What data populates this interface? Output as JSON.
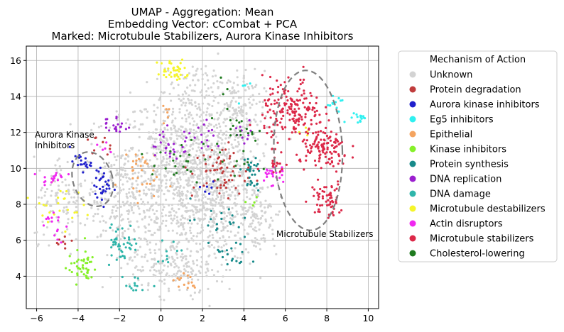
{
  "chart_data": {
    "type": "scatter",
    "title": [
      "UMAP - Aggregation: Mean",
      "Embedding Vector: cCombat + PCA",
      "Marked: Microtubule Stabilizers, Aurora Kinase Inhibitors"
    ],
    "xlabel": "",
    "ylabel": "",
    "xlim": [
      -6.5,
      10.5
    ],
    "ylim": [
      2.2,
      16.8
    ],
    "xticks": [
      -6,
      -4,
      -2,
      0,
      2,
      4,
      6,
      8,
      10
    ],
    "yticks": [
      4,
      6,
      8,
      10,
      12,
      14,
      16
    ],
    "xtick_labels": [
      "−6",
      "−4",
      "−2",
      "0",
      "2",
      "4",
      "6",
      "8",
      "10"
    ],
    "ytick_labels": [
      "4",
      "6",
      "8",
      "10",
      "12",
      "14",
      "16"
    ],
    "grid": true,
    "legend": {
      "title": "Mechanism of Action",
      "placement": "outside-right"
    },
    "series": [
      {
        "name": "Unknown",
        "color": "#d3d3d3",
        "clusters": [
          {
            "cx": 1.2,
            "cy": 9.8,
            "sx": 1.6,
            "sy": 2.3,
            "n": 900
          },
          {
            "cx": 2.8,
            "cy": 8.0,
            "sx": 1.0,
            "sy": 1.8,
            "n": 300
          },
          {
            "cx": -1.6,
            "cy": 8.5,
            "sx": 1.1,
            "sy": 1.6,
            "n": 250
          },
          {
            "cx": 3.6,
            "cy": 13.0,
            "sx": 0.7,
            "sy": 1.2,
            "n": 150
          },
          {
            "cx": 0.5,
            "cy": 4.6,
            "sx": 1.0,
            "sy": 0.8,
            "n": 150
          },
          {
            "cx": -4.6,
            "cy": 8.3,
            "sx": 0.8,
            "sy": 1.2,
            "n": 110
          },
          {
            "cx": 4.6,
            "cy": 7.4,
            "sx": 0.5,
            "sy": 1.0,
            "n": 90
          },
          {
            "cx": 1.8,
            "cy": 14.2,
            "sx": 0.6,
            "sy": 0.8,
            "n": 70
          }
        ]
      },
      {
        "name": "Protein degradation",
        "color": "#c03c3c",
        "clusters": [
          {
            "cx": 2.9,
            "cy": 9.8,
            "sx": 0.7,
            "sy": 0.8,
            "n": 60
          },
          {
            "cx": -3.0,
            "cy": 11.2,
            "sx": 0.3,
            "sy": 0.3,
            "n": 10
          },
          {
            "cx": -4.7,
            "cy": 6.0,
            "sx": 0.3,
            "sy": 0.2,
            "n": 8
          }
        ]
      },
      {
        "name": "Aurora kinase inhibitors",
        "color": "#1f1fcc",
        "clusters": [
          {
            "cx": -3.9,
            "cy": 10.3,
            "sx": 0.25,
            "sy": 0.25,
            "n": 20
          },
          {
            "cx": -2.8,
            "cy": 9.0,
            "sx": 0.2,
            "sy": 0.45,
            "n": 30
          },
          {
            "cx": 2.2,
            "cy": 9.0,
            "sx": 0.3,
            "sy": 0.3,
            "n": 6
          }
        ]
      },
      {
        "name": "Eg5 inhibitors",
        "color": "#2ff0f0",
        "clusters": [
          {
            "cx": 9.6,
            "cy": 12.8,
            "sx": 0.2,
            "sy": 0.2,
            "n": 16
          },
          {
            "cx": 8.4,
            "cy": 13.6,
            "sx": 0.2,
            "sy": 0.4,
            "n": 14
          },
          {
            "cx": 3.8,
            "cy": 14.5,
            "sx": 0.2,
            "sy": 0.3,
            "n": 4
          }
        ]
      },
      {
        "name": "Epithelial",
        "color": "#f4a460",
        "clusters": [
          {
            "cx": -1.2,
            "cy": 9.8,
            "sx": 0.5,
            "sy": 0.8,
            "n": 30
          },
          {
            "cx": 1.3,
            "cy": 3.7,
            "sx": 0.5,
            "sy": 0.3,
            "n": 15
          },
          {
            "cx": 0.2,
            "cy": 13.2,
            "sx": 0.2,
            "sy": 0.3,
            "n": 6
          }
        ]
      },
      {
        "name": "Kinase inhibitors",
        "color": "#86f02a",
        "clusters": [
          {
            "cx": -3.8,
            "cy": 4.5,
            "sx": 0.35,
            "sy": 0.45,
            "n": 45
          },
          {
            "cx": 4.3,
            "cy": 8.3,
            "sx": 0.2,
            "sy": 0.2,
            "n": 4
          }
        ]
      },
      {
        "name": "Protein synthesis",
        "color": "#178a8a",
        "clusters": [
          {
            "cx": 4.3,
            "cy": 9.6,
            "sx": 0.25,
            "sy": 0.5,
            "n": 30
          },
          {
            "cx": 3.5,
            "cy": 5.3,
            "sx": 0.4,
            "sy": 0.6,
            "n": 20
          },
          {
            "cx": 2.6,
            "cy": 7.2,
            "sx": 0.6,
            "sy": 0.6,
            "n": 18
          }
        ]
      },
      {
        "name": "DNA replication",
        "color": "#9b1fcf",
        "clusters": [
          {
            "cx": -2.2,
            "cy": 12.4,
            "sx": 0.3,
            "sy": 0.3,
            "n": 20
          },
          {
            "cx": 0.4,
            "cy": 11.3,
            "sx": 0.5,
            "sy": 0.5,
            "n": 25
          },
          {
            "cx": 2.1,
            "cy": 11.9,
            "sx": 0.4,
            "sy": 0.4,
            "n": 15
          },
          {
            "cx": 4.1,
            "cy": 12.0,
            "sx": 0.25,
            "sy": 0.3,
            "n": 10
          }
        ]
      },
      {
        "name": "DNA damage",
        "color": "#2fb5aa",
        "clusters": [
          {
            "cx": -1.9,
            "cy": 5.8,
            "sx": 0.4,
            "sy": 0.6,
            "n": 45
          },
          {
            "cx": -1.1,
            "cy": 3.5,
            "sx": 0.3,
            "sy": 0.2,
            "n": 12
          },
          {
            "cx": 0.5,
            "cy": 5.5,
            "sx": 0.4,
            "sy": 0.4,
            "n": 10
          }
        ]
      },
      {
        "name": "Microtubule destabilizers",
        "color": "#f5f52a",
        "clusters": [
          {
            "cx": 0.6,
            "cy": 15.4,
            "sx": 0.4,
            "sy": 0.35,
            "n": 40
          },
          {
            "cx": -5.0,
            "cy": 8.0,
            "sx": 0.6,
            "sy": 0.5,
            "n": 25
          },
          {
            "cx": 6.8,
            "cy": 12.1,
            "sx": 0.2,
            "sy": 0.2,
            "n": 4
          }
        ]
      },
      {
        "name": "Actin disruptors",
        "color": "#f028f0",
        "clusters": [
          {
            "cx": -5.2,
            "cy": 9.5,
            "sx": 0.3,
            "sy": 0.2,
            "n": 18
          },
          {
            "cx": -5.3,
            "cy": 6.8,
            "sx": 0.3,
            "sy": 0.5,
            "n": 15
          },
          {
            "cx": 5.4,
            "cy": 9.7,
            "sx": 0.3,
            "sy": 0.35,
            "n": 25
          },
          {
            "cx": -2.6,
            "cy": 11.2,
            "sx": 0.2,
            "sy": 0.2,
            "n": 5
          }
        ]
      },
      {
        "name": "Microtubule stabilizers",
        "color": "#dc2848",
        "clusters": [
          {
            "cx": 6.3,
            "cy": 13.2,
            "sx": 0.7,
            "sy": 0.9,
            "n": 180
          },
          {
            "cx": 7.9,
            "cy": 11.0,
            "sx": 0.6,
            "sy": 0.6,
            "n": 120
          },
          {
            "cx": 8.0,
            "cy": 8.3,
            "sx": 0.4,
            "sy": 0.5,
            "n": 60
          },
          {
            "cx": 5.5,
            "cy": 10.3,
            "sx": 0.3,
            "sy": 0.3,
            "n": 15
          }
        ]
      },
      {
        "name": "Cholesterol-lowering",
        "color": "#1f7a1f",
        "clusters": [
          {
            "cx": 1.0,
            "cy": 10.6,
            "sx": 1.0,
            "sy": 0.6,
            "n": 25
          },
          {
            "cx": 3.2,
            "cy": 12.5,
            "sx": 0.6,
            "sy": 1.0,
            "n": 20
          },
          {
            "cx": 4.0,
            "cy": 11.0,
            "sx": 0.3,
            "sy": 0.6,
            "n": 10
          }
        ]
      }
    ],
    "annotations": [
      {
        "type": "ellipse",
        "label": "Aurora Kinase\nInhibitors",
        "center": [
          -3.3,
          9.4
        ],
        "radii": [
          0.95,
          1.55
        ],
        "angle": -18
      },
      {
        "type": "ellipse",
        "label": "Microtubule Stabilizers",
        "center": [
          7.1,
          11.0
        ],
        "radii": [
          1.65,
          4.45
        ],
        "angle": -2
      }
    ]
  }
}
